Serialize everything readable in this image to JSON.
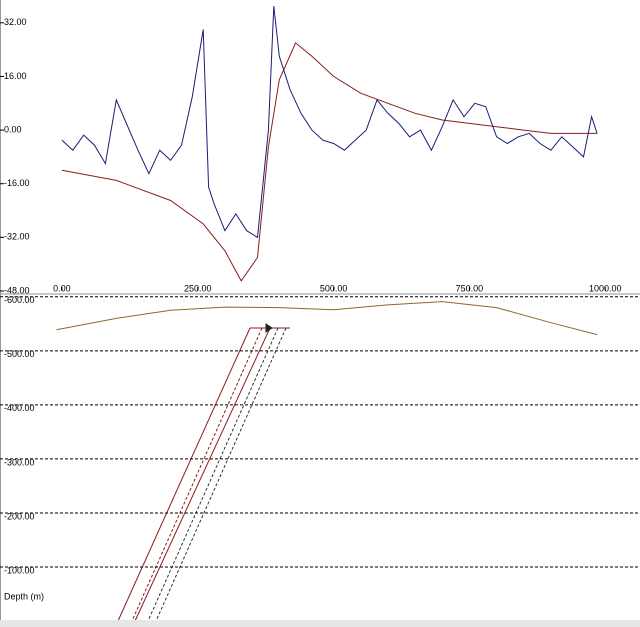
{
  "chart_data": [
    {
      "type": "line",
      "xlim": [
        -114,
        1064
      ],
      "xticks": [
        {
          "value": 0,
          "label": "0.00"
        },
        {
          "value": 250,
          "label": "250.00"
        },
        {
          "value": 500,
          "label": "500.00"
        },
        {
          "value": 750,
          "label": "750.00"
        },
        {
          "value": 1000,
          "label": "1000.00"
        }
      ],
      "ylim": [
        -48,
        38.8
      ],
      "yticks": [
        {
          "value": 32,
          "label": "32.00"
        },
        {
          "value": 16,
          "label": "16.00"
        },
        {
          "value": 0,
          "label": "0.00"
        },
        {
          "value": -16,
          "label": "-16.00"
        },
        {
          "value": -32,
          "label": "-32.00"
        },
        {
          "value": -48,
          "label": "-48.00"
        }
      ],
      "grid": false,
      "series": [
        {
          "color": "#1c1c78",
          "x": [
            0,
            20,
            40,
            60,
            80,
            100,
            120,
            140,
            160,
            180,
            200,
            220,
            240,
            260,
            270,
            280,
            300,
            320,
            340,
            360,
            380,
            390,
            400,
            420,
            440,
            460,
            480,
            500,
            520,
            540,
            560,
            580,
            600,
            620,
            640,
            660,
            680,
            700,
            720,
            740,
            760,
            780,
            800,
            820,
            840,
            860,
            880,
            900,
            920,
            940,
            960,
            975,
            985
          ],
          "values": [
            -3,
            -6,
            -1.5,
            -4.5,
            -10,
            9,
            1.5,
            -6,
            -13,
            -6,
            -9,
            -4.5,
            10,
            30,
            -17,
            -22,
            -30,
            -25,
            -30,
            -32,
            0,
            37,
            22,
            12,
            5,
            0,
            -3,
            -4,
            -6,
            -3,
            0,
            9,
            5,
            2,
            -2,
            0,
            -6,
            1,
            9,
            4,
            8,
            7,
            -2,
            -4,
            -2,
            -1,
            -4,
            -6,
            -2,
            -5,
            -8,
            4,
            -1
          ]
        },
        {
          "color": "#8b1c1c",
          "x": [
            0,
            100,
            200,
            260,
            300,
            330,
            360,
            380,
            400,
            430,
            460,
            500,
            550,
            600,
            650,
            700,
            750,
            800,
            850,
            900,
            985
          ],
          "values": [
            -12,
            -15,
            -21,
            -28,
            -36,
            -45,
            -38,
            -5,
            15,
            26,
            22,
            16,
            11,
            8,
            5,
            3,
            2,
            1,
            0,
            -1,
            -1
          ]
        }
      ]
    },
    {
      "type": "line",
      "xlim": [
        -114,
        1064
      ],
      "ylim": [
        11,
        -607
      ],
      "yticks": [
        {
          "value": -600,
          "label": "-600.00"
        },
        {
          "value": -500,
          "label": "-500.00"
        },
        {
          "value": -400,
          "label": "-400.00"
        },
        {
          "value": -300,
          "label": "-300.00"
        },
        {
          "value": -200,
          "label": "-200.00"
        },
        {
          "value": -100,
          "label": "-100.00"
        }
      ],
      "grid": "dashed",
      "ylabel": "Depth (m)",
      "series": [
        {
          "color": "#8b6a2a",
          "x": [
            -10,
            100,
            200,
            300,
            400,
            500,
            600,
            700,
            800,
            900,
            985
          ],
          "values": [
            -539,
            -560,
            -575,
            -581,
            -580,
            -576,
            -585,
            -591,
            -580,
            -552,
            -530
          ]
        }
      ]
    }
  ]
}
